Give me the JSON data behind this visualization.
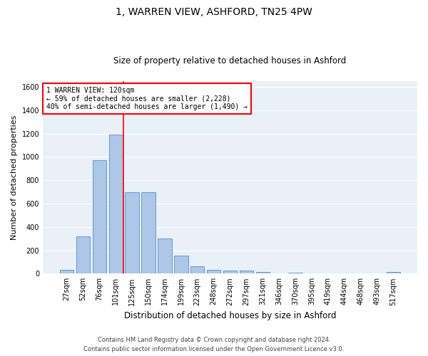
{
  "title1": "1, WARREN VIEW, ASHFORD, TN25 4PW",
  "title2": "Size of property relative to detached houses in Ashford",
  "xlabel": "Distribution of detached houses by size in Ashford",
  "ylabel": "Number of detached properties",
  "footer1": "Contains HM Land Registry data © Crown copyright and database right 2024.",
  "footer2": "Contains public sector information licensed under the Open Government Licence v3.0.",
  "annotation_line1": "1 WARREN VIEW: 120sqm",
  "annotation_line2": "← 59% of detached houses are smaller (2,228)",
  "annotation_line3": "40% of semi-detached houses are larger (1,490) →",
  "categories": [
    "27sqm",
    "52sqm",
    "76sqm",
    "101sqm",
    "125sqm",
    "150sqm",
    "174sqm",
    "199sqm",
    "223sqm",
    "248sqm",
    "272sqm",
    "297sqm",
    "321sqm",
    "346sqm",
    "370sqm",
    "395sqm",
    "419sqm",
    "444sqm",
    "468sqm",
    "493sqm",
    "517sqm"
  ],
  "values": [
    30,
    320,
    970,
    1190,
    700,
    700,
    300,
    155,
    65,
    30,
    25,
    25,
    15,
    0,
    10,
    0,
    0,
    0,
    0,
    0,
    15
  ],
  "bar_color": "#aec6e8",
  "bar_edgecolor": "#5b9bd5",
  "vline_color": "red",
  "annotation_box_color": "red",
  "ylim": [
    0,
    1650
  ],
  "yticks": [
    0,
    200,
    400,
    600,
    800,
    1000,
    1200,
    1400,
    1600
  ],
  "bg_color": "#eaf0f8",
  "grid_color": "white",
  "title1_fontsize": 10,
  "title2_fontsize": 8.5,
  "xlabel_fontsize": 8.5,
  "ylabel_fontsize": 8,
  "tick_fontsize": 7,
  "footer_fontsize": 6,
  "annotation_fontsize": 7
}
